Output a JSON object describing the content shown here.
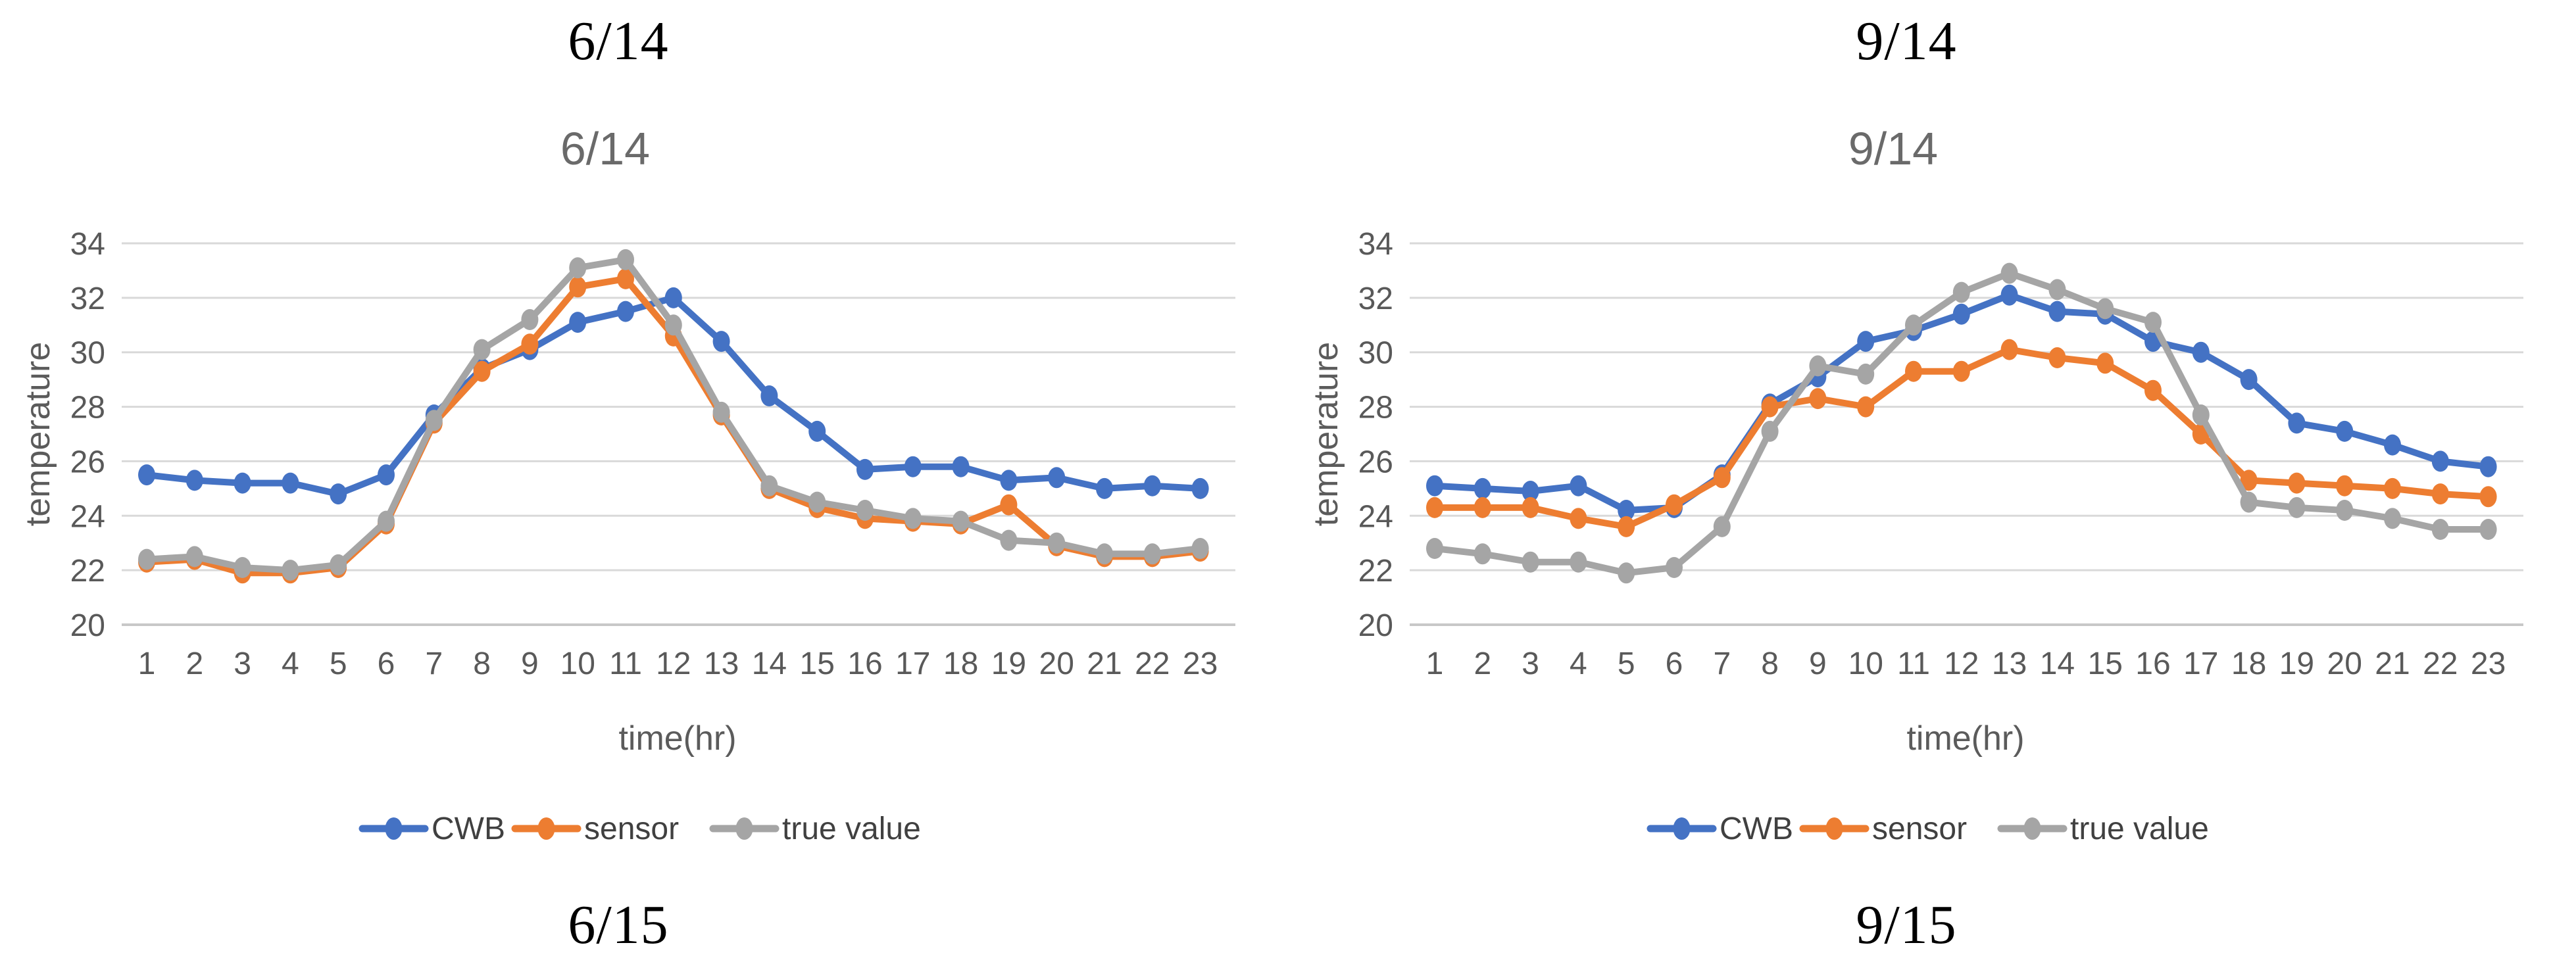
{
  "figure": {
    "panels": [
      {
        "top_label": "6/14",
        "bottom_label": "6/15"
      },
      {
        "top_label": "9/14",
        "bottom_label": "9/15"
      }
    ]
  },
  "chart_data": [
    {
      "type": "line",
      "title": "6/14",
      "xlabel": "time(hr)",
      "ylabel": "temperature",
      "x": [
        1,
        2,
        3,
        4,
        5,
        6,
        7,
        8,
        9,
        10,
        11,
        12,
        13,
        14,
        15,
        16,
        17,
        18,
        19,
        20,
        21,
        22,
        23
      ],
      "ylim": [
        20,
        34
      ],
      "ytick_step": 2,
      "grid": true,
      "legend_position": "bottom",
      "marker": "circle",
      "series": [
        {
          "name": "CWB",
          "color": "#4472C4",
          "values": [
            25.5,
            25.3,
            25.2,
            25.2,
            24.8,
            25.5,
            27.7,
            29.4,
            30.1,
            31.1,
            31.5,
            32.0,
            30.4,
            28.4,
            27.1,
            25.7,
            25.8,
            25.8,
            25.3,
            25.4,
            25.0,
            25.1,
            25.0
          ]
        },
        {
          "name": "sensor",
          "color": "#ED7D31",
          "values": [
            22.3,
            22.4,
            21.9,
            21.9,
            22.1,
            23.7,
            27.4,
            29.3,
            30.3,
            32.4,
            32.7,
            30.6,
            27.7,
            25.0,
            24.3,
            23.9,
            23.8,
            23.7,
            24.4,
            22.9,
            22.5,
            22.5,
            22.7
          ]
        },
        {
          "name": "true value",
          "color": "#A5A5A5",
          "values": [
            22.4,
            22.5,
            22.1,
            22.0,
            22.2,
            23.8,
            27.5,
            30.1,
            31.2,
            33.1,
            33.4,
            31.0,
            27.8,
            25.1,
            24.5,
            24.2,
            23.9,
            23.8,
            23.1,
            23.0,
            22.6,
            22.6,
            22.8
          ]
        }
      ]
    },
    {
      "type": "line",
      "title": "9/14",
      "xlabel": "time(hr)",
      "ylabel": "temperature",
      "x": [
        1,
        2,
        3,
        4,
        5,
        6,
        7,
        8,
        9,
        10,
        11,
        12,
        13,
        14,
        15,
        16,
        17,
        18,
        19,
        20,
        21,
        22,
        23
      ],
      "ylim": [
        20,
        34
      ],
      "ytick_step": 2,
      "grid": true,
      "legend_position": "bottom",
      "marker": "circle",
      "series": [
        {
          "name": "CWB",
          "color": "#4472C4",
          "values": [
            25.1,
            25.0,
            24.9,
            25.1,
            24.2,
            24.3,
            25.5,
            28.1,
            29.1,
            30.4,
            30.8,
            31.4,
            32.1,
            31.5,
            31.4,
            30.4,
            30.0,
            29.0,
            27.4,
            27.1,
            26.6,
            26.0,
            25.8
          ]
        },
        {
          "name": "sensor",
          "color": "#ED7D31",
          "values": [
            24.3,
            24.3,
            24.3,
            23.9,
            23.6,
            24.4,
            25.4,
            28.0,
            28.3,
            28.0,
            29.3,
            29.3,
            30.1,
            29.8,
            29.6,
            28.6,
            27.0,
            25.3,
            25.2,
            25.1,
            25.0,
            24.8,
            24.7
          ]
        },
        {
          "name": "true value",
          "color": "#A5A5A5",
          "values": [
            22.8,
            22.6,
            22.3,
            22.3,
            21.9,
            22.1,
            23.6,
            27.1,
            29.5,
            29.2,
            31.0,
            32.2,
            32.9,
            32.3,
            31.6,
            31.1,
            27.7,
            24.5,
            24.3,
            24.2,
            23.9,
            23.5,
            23.5
          ]
        }
      ]
    }
  ],
  "style": {
    "grid_color": "#D9D9D9",
    "axis_line_color": "#C8C8C8",
    "title_color": "#6a6a6a",
    "tick_color": "#595959"
  }
}
